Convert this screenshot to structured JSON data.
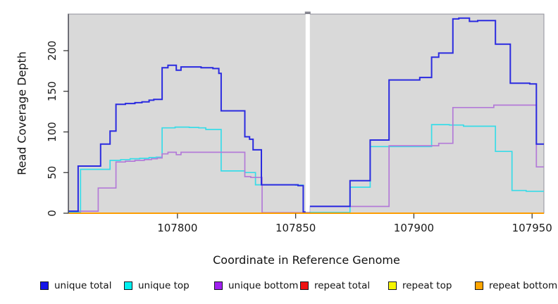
{
  "chart_data": {
    "type": "line",
    "subtype": "step-coverage-plot",
    "title": "",
    "xlabel": "Coordinate in Reference Genome",
    "ylabel": "Read Coverage Depth",
    "xlim": [
      107754,
      107955
    ],
    "ylim": [
      0,
      245
    ],
    "x_ticks": [
      107800,
      107850,
      107900,
      107950
    ],
    "y_ticks": [
      0,
      50,
      100,
      150,
      200
    ],
    "grid": false,
    "panel_bg": "#d9d9d9",
    "legend_position": "bottom",
    "coverage_gap_x": [
      107854.2,
      107856.0
    ],
    "series": [
      {
        "name": "unique total",
        "line_color": "#2b2be0",
        "swatch_color": "#1414e8",
        "width": 2,
        "step_points": [
          [
            107754,
            2.5
          ],
          [
            107758,
            58
          ],
          [
            107767.5,
            85
          ],
          [
            107771.5,
            101
          ],
          [
            107774,
            134
          ],
          [
            107778,
            135
          ],
          [
            107782,
            136
          ],
          [
            107785,
            137
          ],
          [
            107788,
            139
          ],
          [
            107790,
            140
          ],
          [
            107793.5,
            179
          ],
          [
            107796,
            182
          ],
          [
            107799.5,
            176
          ],
          [
            107801.5,
            180
          ],
          [
            107810,
            179
          ],
          [
            107815,
            178
          ],
          [
            107817.5,
            172
          ],
          [
            107818.5,
            126
          ],
          [
            107828.5,
            94
          ],
          [
            107830.5,
            91
          ],
          [
            107832,
            78
          ],
          [
            107835.5,
            35
          ],
          [
            107851,
            34
          ],
          [
            107853.2,
            1.5
          ],
          [
            107855.8,
            8.5
          ],
          [
            107873,
            40
          ],
          [
            107881.5,
            90
          ],
          [
            107889.5,
            164
          ],
          [
            107902.5,
            167
          ],
          [
            107907.5,
            192
          ],
          [
            107910.5,
            197
          ],
          [
            107916.5,
            239
          ],
          [
            107919,
            240
          ],
          [
            107923.5,
            236
          ],
          [
            107927,
            237
          ],
          [
            107934.5,
            208
          ],
          [
            107940.8,
            160
          ],
          [
            107949,
            159
          ],
          [
            107951.8,
            85
          ],
          [
            107955,
            85
          ]
        ]
      },
      {
        "name": "unique top",
        "line_color": "#38dce8",
        "swatch_color": "#00f0f0",
        "width": 1.7,
        "step_points": [
          [
            107754,
            1
          ],
          [
            107759,
            54
          ],
          [
            107771.5,
            65
          ],
          [
            107776,
            66
          ],
          [
            107780,
            67
          ],
          [
            107784,
            67.5
          ],
          [
            107788,
            68.5
          ],
          [
            107791,
            69
          ],
          [
            107793.5,
            105
          ],
          [
            107799,
            106
          ],
          [
            107805,
            105.5
          ],
          [
            107809,
            105
          ],
          [
            107812,
            103
          ],
          [
            107818.5,
            52
          ],
          [
            107828.5,
            50
          ],
          [
            107833,
            35
          ],
          [
            107850,
            34.5
          ],
          [
            107853.2,
            1
          ],
          [
            107873,
            32
          ],
          [
            107881.5,
            82
          ],
          [
            107907.5,
            109
          ],
          [
            107915,
            108.5
          ],
          [
            107921,
            107
          ],
          [
            107934.5,
            76
          ],
          [
            107941.5,
            28
          ],
          [
            107947.5,
            27
          ],
          [
            107955,
            27
          ]
        ]
      },
      {
        "name": "unique bottom",
        "line_color": "#b37ad8",
        "swatch_color": "#a020f0",
        "width": 1.7,
        "step_points": [
          [
            107754,
            2.5
          ],
          [
            107766.5,
            31
          ],
          [
            107774,
            63
          ],
          [
            107778,
            64
          ],
          [
            107782,
            65
          ],
          [
            107786,
            66
          ],
          [
            107789,
            67
          ],
          [
            107791.5,
            68
          ],
          [
            107793.5,
            73
          ],
          [
            107796,
            75
          ],
          [
            107799.5,
            72
          ],
          [
            107801.5,
            75
          ],
          [
            107828.5,
            45
          ],
          [
            107831,
            44
          ],
          [
            107835.8,
            0.7
          ],
          [
            107855.8,
            8.3
          ],
          [
            107889.5,
            83
          ],
          [
            107910.5,
            86
          ],
          [
            107916.5,
            130
          ],
          [
            107933.8,
            133
          ],
          [
            107951.8,
            57
          ],
          [
            107955,
            57
          ]
        ]
      },
      {
        "name": "repeat total",
        "line_color": "#ee2222",
        "swatch_color": "#ee1111",
        "width": 1.7,
        "step_points": [
          [
            107754,
            0
          ],
          [
            107955,
            0
          ]
        ]
      },
      {
        "name": "repeat top",
        "line_color": "#f2f200",
        "swatch_color": "#f5f500",
        "width": 1.7,
        "step_points": [
          [
            107754,
            0
          ],
          [
            107955,
            0
          ]
        ]
      },
      {
        "name": "repeat bottom",
        "line_color": "#ff9d00",
        "swatch_color": "#ffa500",
        "width": 2,
        "step_points": [
          [
            107754,
            0
          ],
          [
            107955,
            0
          ]
        ]
      }
    ]
  }
}
